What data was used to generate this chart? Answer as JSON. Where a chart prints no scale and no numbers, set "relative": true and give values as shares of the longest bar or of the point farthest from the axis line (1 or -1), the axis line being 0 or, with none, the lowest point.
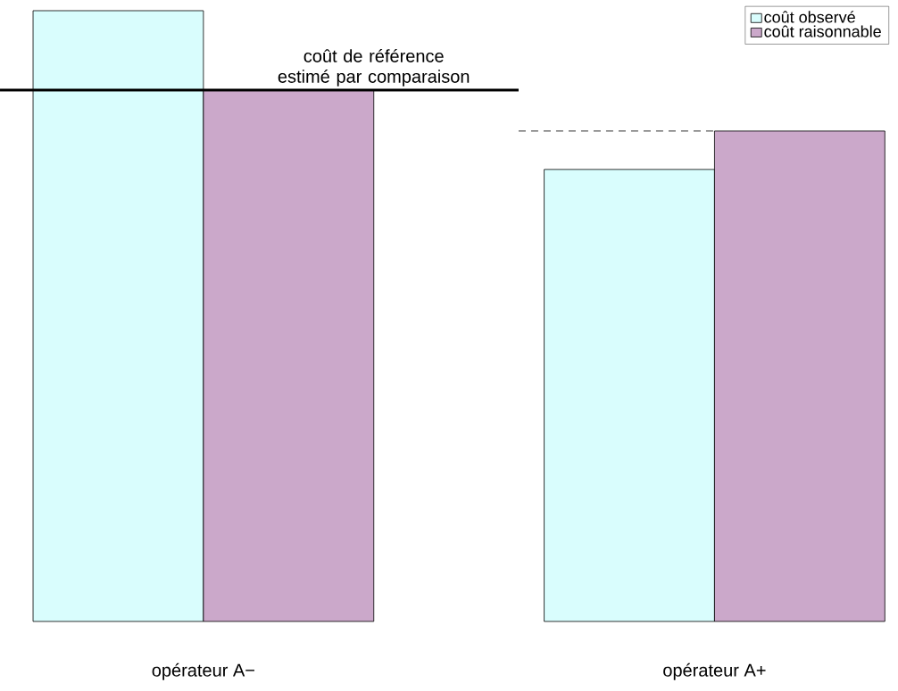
{
  "chart_data": {
    "type": "bar",
    "relative": true,
    "categories": [
      "opérateur A−",
      "opérateur A+"
    ],
    "series": [
      {
        "name": "coût observé",
        "color": "#d9fdfd",
        "values": [
          1,
          0.74
        ]
      },
      {
        "name": "coût raisonnable",
        "color": "#cba8ca",
        "values": [
          0.87,
          0.803
        ]
      }
    ],
    "ref_lines": [
      {
        "axis": "y",
        "value": 0.87,
        "label": "coût de référence estimé par comparaison",
        "line_style": "solid"
      },
      {
        "axis": "y",
        "value": 0.803,
        "line_style": "dashed"
      }
    ],
    "legend": "top right"
  }
}
